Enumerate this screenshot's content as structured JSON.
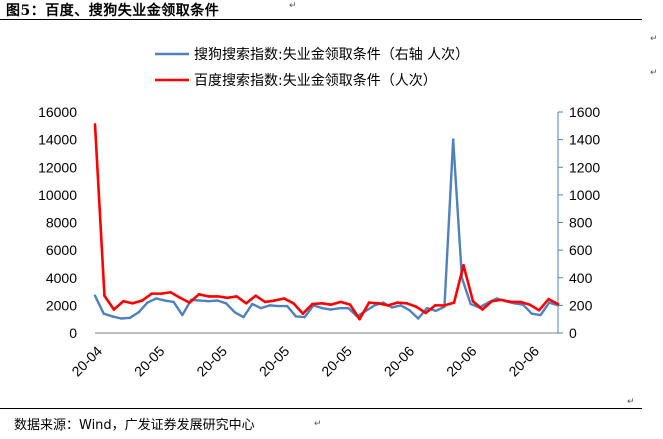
{
  "header": {
    "title": "图5：百度、搜狗失业金领取条件"
  },
  "footer": {
    "source": "数据来源：Wind，广发证券发展研究中心"
  },
  "chart_data": {
    "type": "line",
    "title": "",
    "x_tick_labels": [
      "20-04",
      "20-05",
      "20-05",
      "20-05",
      "20-05",
      "20-06",
      "20-06",
      "20-06"
    ],
    "left_axis": {
      "range": [
        0,
        16000
      ],
      "ticks": [
        0,
        2000,
        4000,
        6000,
        8000,
        10000,
        12000,
        14000,
        16000
      ]
    },
    "right_axis": {
      "range": [
        0,
        1600
      ],
      "ticks": [
        0,
        200,
        400,
        600,
        800,
        1000,
        1200,
        1400,
        1600
      ]
    },
    "legend_position": "top",
    "series": [
      {
        "name": "搜狗搜索指数:失业金领取条件（右轴 人次）",
        "color": "#4f81bd",
        "axis": "right",
        "values": [
          270,
          140,
          120,
          105,
          110,
          150,
          220,
          250,
          235,
          225,
          130,
          240,
          235,
          230,
          235,
          215,
          150,
          115,
          210,
          180,
          200,
          195,
          195,
          120,
          115,
          200,
          180,
          170,
          180,
          180,
          120,
          160,
          200,
          220,
          185,
          200,
          165,
          105,
          180,
          160,
          190,
          1400,
          400,
          210,
          185,
          220,
          250,
          230,
          215,
          205,
          140,
          130,
          220,
          200
        ]
      },
      {
        "name": "百度搜索指数:失业金领取条件（人次）",
        "color": "#ff0000",
        "axis": "left",
        "values": [
          15100,
          2700,
          1700,
          2300,
          2150,
          2350,
          2850,
          2850,
          2950,
          2550,
          2200,
          2800,
          2650,
          2650,
          2550,
          2650,
          2150,
          2700,
          2250,
          2350,
          2500,
          2150,
          1400,
          2100,
          2150,
          2050,
          2250,
          2050,
          1000,
          2200,
          2150,
          2000,
          2200,
          2150,
          1900,
          1450,
          2000,
          2000,
          2200,
          4900,
          2300,
          1700,
          2300,
          2400,
          2250,
          2250,
          2050,
          1650,
          2450,
          2100
        ]
      }
    ]
  }
}
